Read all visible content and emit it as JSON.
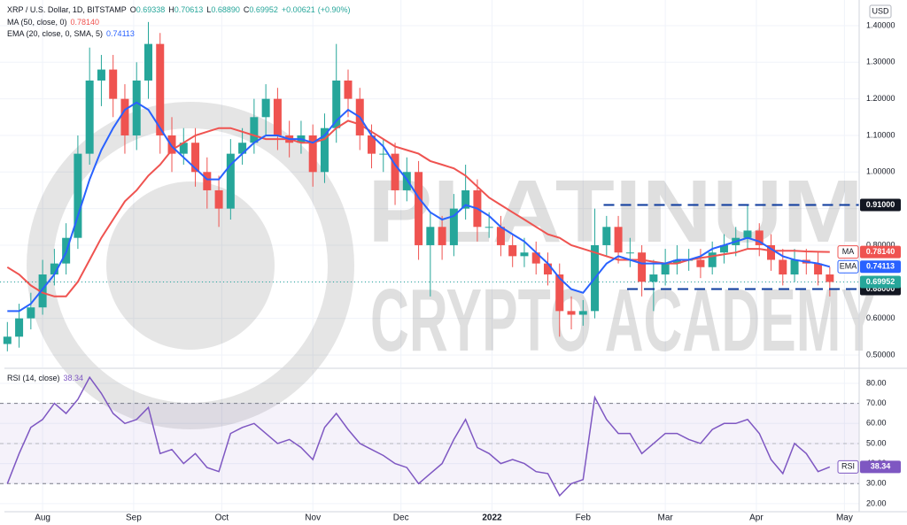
{
  "chart_data": {
    "type": "candlestick",
    "header": {
      "title": "XRP / U.S. Dollar, 1D, BITSTAMP",
      "ohlc": [
        {
          "prefix": "O",
          "value": 0.69338
        },
        {
          "prefix": "H",
          "value": 0.70613
        },
        {
          "prefix": "L",
          "value": {
            "value": 0.6889,
            "label": "0.68890"
          }
        },
        {
          "prefix": "C",
          "value": 0.69952
        }
      ],
      "change": {
        "value": 0.00621,
        "label": "+0.00621"
      },
      "change_pct": {
        "value": 0.9,
        "label": "(+0.90%)"
      }
    },
    "currency": "USD",
    "watermark": [
      "PLATINUM",
      "CRYPTO ACADEMY"
    ],
    "up_color": "#26a69a",
    "down_color": "#ef5350",
    "x": [
      0,
      4,
      8,
      12,
      16,
      20,
      24,
      28,
      32,
      36,
      40,
      44,
      48,
      52,
      56,
      60,
      64,
      68,
      72,
      76,
      80,
      84,
      88,
      92,
      96,
      100,
      104,
      108,
      112,
      116,
      120,
      124,
      128,
      132,
      136,
      140,
      144,
      148,
      152,
      156,
      160,
      164,
      168,
      172,
      176,
      180,
      184,
      188,
      192,
      196,
      200,
      204,
      208,
      212,
      216,
      220,
      224,
      228,
      232,
      236,
      240,
      244,
      248,
      252,
      256,
      260,
      264,
      268,
      272,
      276,
      280
    ],
    "open": [
      0.53,
      0.55,
      0.6,
      0.63,
      0.72,
      0.75,
      0.82,
      1.05,
      1.25,
      1.28,
      1.2,
      1.1,
      1.25,
      1.35,
      1.1,
      1.05,
      1.08,
      1.0,
      0.95,
      0.9,
      1.05,
      1.08,
      1.15,
      1.2,
      1.1,
      1.08,
      1.1,
      1.0,
      1.12,
      1.25,
      1.2,
      1.1,
      1.05,
      1.05,
      0.95,
      1.0,
      0.8,
      0.85,
      0.8,
      0.9,
      0.95,
      0.85,
      0.85,
      0.8,
      0.77,
      0.78,
      0.75,
      0.72,
      0.62,
      0.61,
      0.62,
      0.8,
      0.85,
      0.78,
      0.78,
      0.7,
      0.72,
      0.75,
      0.76,
      0.76,
      0.74,
      0.78,
      0.8,
      0.82,
      0.84,
      0.8,
      0.76,
      0.72,
      0.76,
      0.75,
      0.72
    ],
    "high": [
      0.59,
      0.64,
      0.67,
      0.76,
      0.79,
      0.86,
      1.1,
      1.34,
      1.32,
      1.32,
      1.24,
      1.3,
      1.41,
      1.38,
      1.15,
      1.12,
      1.12,
      1.04,
      0.99,
      1.09,
      1.12,
      1.2,
      1.24,
      1.23,
      1.14,
      1.14,
      1.13,
      1.16,
      1.35,
      1.28,
      1.23,
      1.13,
      1.09,
      1.08,
      1.04,
      1.03,
      0.89,
      0.88,
      0.94,
      1.02,
      0.98,
      0.89,
      0.88,
      0.83,
      0.82,
      0.81,
      0.78,
      0.75,
      0.66,
      0.65,
      0.9,
      0.88,
      0.88,
      0.82,
      0.8,
      0.76,
      0.79,
      0.8,
      0.79,
      0.79,
      0.81,
      0.83,
      0.85,
      0.91,
      0.86,
      0.83,
      0.79,
      0.79,
      0.79,
      0.78,
      0.74
    ],
    "low": [
      0.51,
      0.52,
      0.57,
      0.61,
      0.69,
      0.72,
      0.79,
      1.02,
      1.18,
      1.15,
      1.05,
      1.06,
      1.2,
      1.05,
      1.0,
      1.02,
      0.96,
      0.9,
      0.85,
      0.87,
      1.02,
      1.05,
      1.1,
      1.06,
      1.04,
      1.05,
      0.96,
      0.97,
      1.08,
      1.15,
      1.06,
      1.01,
      1.0,
      0.91,
      0.92,
      0.76,
      0.66,
      0.76,
      0.77,
      0.87,
      0.81,
      0.82,
      0.77,
      0.74,
      0.74,
      0.72,
      0.69,
      0.55,
      0.57,
      0.58,
      0.6,
      0.77,
      0.75,
      0.74,
      0.66,
      0.62,
      0.69,
      0.72,
      0.73,
      0.71,
      0.72,
      0.75,
      0.77,
      0.79,
      0.77,
      0.73,
      0.69,
      0.7,
      0.72,
      0.69,
      0.66
    ],
    "close": [
      0.55,
      0.6,
      0.63,
      0.72,
      0.75,
      0.82,
      1.05,
      1.25,
      1.28,
      1.2,
      1.1,
      1.25,
      1.35,
      1.1,
      1.05,
      1.08,
      1.0,
      0.95,
      0.9,
      1.05,
      1.08,
      1.15,
      1.2,
      1.1,
      1.08,
      1.1,
      1.0,
      1.12,
      1.25,
      1.2,
      1.1,
      1.05,
      1.05,
      0.95,
      1.0,
      0.8,
      0.85,
      0.8,
      0.9,
      0.95,
      0.85,
      0.85,
      0.8,
      0.77,
      0.78,
      0.75,
      0.72,
      0.62,
      0.61,
      0.62,
      0.8,
      0.85,
      0.78,
      0.78,
      0.7,
      0.72,
      0.75,
      0.76,
      0.76,
      0.74,
      0.78,
      0.8,
      0.82,
      0.84,
      0.8,
      0.76,
      0.72,
      0.76,
      0.75,
      0.72,
      0.69952
    ],
    "last_price": 0.69952,
    "series": [
      {
        "name": "MA (50, close, 0)",
        "tag": "MA",
        "color": "#ef5350",
        "last": {
          "value": 0.7814,
          "label": "0.78140"
        },
        "values": [
          0.74,
          0.72,
          0.69,
          0.67,
          0.66,
          0.66,
          0.7,
          0.76,
          0.82,
          0.87,
          0.92,
          0.95,
          0.99,
          1.02,
          1.06,
          1.08,
          1.1,
          1.11,
          1.12,
          1.12,
          1.11,
          1.1,
          1.09,
          1.09,
          1.09,
          1.08,
          1.08,
          1.09,
          1.12,
          1.14,
          1.13,
          1.11,
          1.09,
          1.07,
          1.06,
          1.05,
          1.03,
          1.02,
          1.01,
          0.99,
          0.96,
          0.93,
          0.91,
          0.89,
          0.87,
          0.85,
          0.83,
          0.82,
          0.8,
          0.79,
          0.78,
          0.77,
          0.76,
          0.76,
          0.76,
          0.755,
          0.75,
          0.75,
          0.76,
          0.765,
          0.77,
          0.775,
          0.78,
          0.79,
          0.79,
          0.785,
          0.785,
          0.785,
          0.783,
          0.782,
          0.7814
        ]
      },
      {
        "name": "EMA (20, close, 0, SMA, 5)",
        "tag": "EMA",
        "color": "#2962ff",
        "last": 0.74113,
        "values": [
          0.62,
          0.62,
          0.64,
          0.68,
          0.72,
          0.78,
          0.88,
          0.98,
          1.06,
          1.12,
          1.17,
          1.19,
          1.17,
          1.12,
          1.07,
          1.04,
          1.01,
          0.98,
          0.98,
          1.02,
          1.05,
          1.08,
          1.1,
          1.1,
          1.09,
          1.09,
          1.08,
          1.1,
          1.14,
          1.17,
          1.15,
          1.1,
          1.07,
          1.02,
          0.98,
          0.93,
          0.89,
          0.87,
          0.88,
          0.91,
          0.9,
          0.88,
          0.85,
          0.83,
          0.81,
          0.78,
          0.75,
          0.71,
          0.68,
          0.67,
          0.71,
          0.75,
          0.77,
          0.76,
          0.75,
          0.75,
          0.75,
          0.76,
          0.76,
          0.77,
          0.79,
          0.8,
          0.81,
          0.82,
          0.81,
          0.79,
          0.77,
          0.76,
          0.755,
          0.75,
          0.74113
        ]
      }
    ],
    "levels": [
      {
        "value": 0.91,
        "label": "0.91000",
        "x_start": 203
      },
      {
        "value": 0.68,
        "label": "0.68000",
        "x_start": 211
      }
    ],
    "level_color": "#0d3b9e",
    "xlim": [
      -1,
      290
    ],
    "xticks": [
      {
        "value": 12,
        "label": "Aug"
      },
      {
        "value": 43,
        "label": "Sep"
      },
      {
        "value": 73,
        "label": "Oct"
      },
      {
        "value": 104,
        "label": "Nov"
      },
      {
        "value": 134,
        "label": "Dec"
      },
      {
        "value": 165,
        "label": "2022"
      },
      {
        "value": 196,
        "label": "Feb"
      },
      {
        "value": 224,
        "label": "Mar"
      },
      {
        "value": 255,
        "label": "Apr"
      },
      {
        "value": 285,
        "label": "May"
      }
    ],
    "ylim": [
      0.466,
      1.458
    ],
    "yticks": [
      {
        "value": 0.5,
        "label": "0.50000"
      },
      {
        "value": 0.6,
        "label": "0.60000"
      },
      {
        "value": 0.7,
        "label": "0.70000"
      },
      {
        "value": 0.8,
        "label": "0.80000"
      },
      {
        "value": 0.9,
        "label": "0.90000"
      },
      {
        "value": 1.0,
        "label": "1.00000"
      },
      {
        "value": 1.1,
        "label": "1.10000"
      },
      {
        "value": 1.2,
        "label": "1.20000"
      },
      {
        "value": 1.3,
        "label": "1.30000"
      },
      {
        "value": 1.4,
        "label": "1.40000"
      }
    ],
    "grid": true,
    "rsi": {
      "name": "RSI (14, close)",
      "tag": "RSI",
      "color": "#7e57c2",
      "last": 38.34,
      "values": [
        30,
        45,
        58,
        62,
        70,
        65,
        72,
        83,
        75,
        65,
        60,
        62,
        68,
        45,
        47,
        40,
        45,
        38,
        36,
        55,
        58,
        60,
        55,
        50,
        52,
        48,
        42,
        58,
        65,
        57,
        50,
        47,
        44,
        40,
        38,
        30,
        35,
        40,
        52,
        62,
        48,
        45,
        40,
        42,
        40,
        36,
        35,
        24,
        30,
        32,
        73,
        62,
        55,
        55,
        45,
        50,
        55,
        55,
        52,
        50,
        57,
        60,
        60,
        62,
        55,
        42,
        35,
        50,
        45,
        36,
        38.34
      ],
      "band": [
        30,
        70
      ],
      "midline": 50,
      "ylim": [
        16,
        86.6
      ],
      "yticks": [
        {
          "value": 20,
          "label": "20.00"
        },
        {
          "value": 30,
          "label": "30.00"
        },
        {
          "value": 40,
          "label": "40.00"
        },
        {
          "value": 50,
          "label": "50.00"
        },
        {
          "value": 60,
          "label": "60.00"
        },
        {
          "value": 70,
          "label": "70.00"
        },
        {
          "value": 80,
          "label": "80.00"
        }
      ]
    }
  }
}
